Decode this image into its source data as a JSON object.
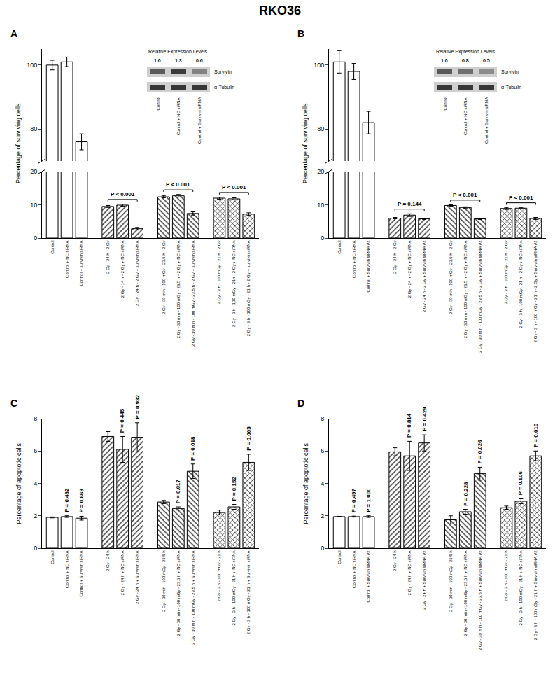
{
  "title": "RKO36",
  "chart_data": [
    {
      "type": "bar",
      "panel": "A",
      "ylabel": "Percentage of surviving cells",
      "categories": [
        "Control",
        "Control + NC siRNA",
        "Control + survivin siRNA",
        "2 Gy - 24 h - 2 Gy",
        "2 Gy - 14 h - 2 Gy + NC siRNA",
        "2 Gy - 24 h - 2 Gy + survivin siRNA",
        "2 Gy - 30 min - 100 mGy - 23.5 h - 2 Gy",
        "2 Gy - 30 min - 100 mGy - 23.5 h - 2 Gy + NC siRNA",
        "2 Gy - 30 min - 100 mGy - 23.5 h - 2 Gy + survivin siRNA",
        "2 Gy - 3 h - 100 mGy - 21 h - 2 Gy",
        "2 Gy - 3 h - 100 mGy - 21h - 2 Gy + NC siRNA",
        "2 Gy - 3 h - 100 mGy - 21 h - 2 Gy + survivin siRNA"
      ],
      "values": [
        100,
        101,
        76,
        9.5,
        9.9,
        2.8,
        12.4,
        12.7,
        7.4,
        12.0,
        11.8,
        7.2
      ],
      "errors": [
        1.5,
        1.5,
        2.5,
        0.3,
        0.3,
        0.4,
        0.3,
        0.4,
        0.5,
        0.3,
        0.3,
        0.4
      ],
      "color": "#ffffff",
      "ylim": [
        [
          0,
          20
        ],
        [
          70,
          105
        ]
      ],
      "yticks": [
        [
          0,
          10,
          20
        ],
        [
          80,
          100
        ]
      ],
      "brackets": [
        {
          "from": "2 Gy - 24 h - 2 Gy",
          "to": "2 Gy - 24 h - 2 Gy + survivin siRNA",
          "text": "P < 0.001"
        },
        {
          "from": "2 Gy - 30 min - 100 mGy - 23.5 h - 2 Gy",
          "to": "2 Gy - 30 min - 100 mGy - 23.5 h - 2 Gy + survivin siRNA",
          "text": "P < 0.001"
        },
        {
          "from": "2 Gy - 3 h - 100 mGy - 21 h - 2 Gy",
          "to": "2 Gy - 3 h - 100 mGy - 21 h - 2 Gy + survivin siRNA",
          "text": "P < 0.001"
        }
      ],
      "blot": {
        "title": "Relative Expression Levels",
        "levels": [
          "1.0",
          "1.3",
          "0.6"
        ],
        "proteins": [
          "Survivin",
          "α-Tubulin"
        ],
        "lanes": [
          "Control",
          "Control + NC siRNA",
          "Control + Survivin siRNA"
        ]
      }
    },
    {
      "type": "bar",
      "panel": "B",
      "ylabel": "Percentage of surviving cells",
      "categories": [
        "Control",
        "Control + NC siRNA",
        "Control + Survivin siRNA #2",
        "2 Gy - 24 h - 2 Gy",
        "2 Gy - 24 h - 2 Gy + NC siRNA",
        "2 Gy - 24 h - 2 Gy + Survivin siRNA #2",
        "2 Gy - 30 min - 100 mGy - 23.5 h - 2 Gy",
        "2 Gy - 30 min - 100 mGy - 23.5 h - 2 Gy + NC siRNA",
        "2 Gy - 30 min - 100 mGy - 23.5 h - 2 Gy + Survivin siRNA #2",
        "2 Gy - 3 h - 100 mGy - 21 h - 2 Gy",
        "2 Gy - 3 h - 100 mGy - 21 h - 2 Gy + NC siRNA",
        "2 Gy - 3 h - 100 mGy - 21 h - 2 Gy + Survivin siRNA #2"
      ],
      "values": [
        101,
        98,
        82,
        6.0,
        6.9,
        5.8,
        9.8,
        9.2,
        5.8,
        8.9,
        9.0,
        5.9
      ],
      "errors": [
        3.5,
        2.5,
        3.5,
        0.2,
        0.4,
        0.2,
        0.2,
        0.2,
        0.2,
        0.3,
        0.2,
        0.3
      ],
      "color": "#ffffff",
      "ylim": [
        [
          0,
          20
        ],
        [
          70,
          105
        ]
      ],
      "yticks": [
        [
          0,
          10,
          20
        ],
        [
          80,
          100
        ]
      ],
      "brackets": [
        {
          "from": "2 Gy - 24 h - 2 Gy",
          "to": "2 Gy - 24 h - 2 Gy + Survivin siRNA #2",
          "text": "P = 0.144"
        },
        {
          "from": "2 Gy - 30 min - 100 mGy - 23.5 h - 2 Gy",
          "to": "2 Gy - 30 min - 100 mGy - 23.5 h - 2 Gy + Survivin siRNA #2",
          "text": "P < 0.001"
        },
        {
          "from": "2 Gy - 3 h - 100 mGy - 21 h - 2 Gy",
          "to": "2 Gy - 3 h - 100 mGy - 21 h - 2 Gy + Survivin siRNA #2",
          "text": "P < 0.001"
        }
      ],
      "blot": {
        "title": "Relative Expression Levels",
        "levels": [
          "1.0",
          "0.8",
          "0.5"
        ],
        "proteins": [
          "Survivin",
          "α-Tubulin"
        ],
        "lanes": [
          "Control",
          "Control + NC siRNA",
          "Control + Survivin siRNA"
        ]
      }
    },
    {
      "type": "bar",
      "panel": "C",
      "ylabel": "Percentage of apoptotic cells",
      "categories": [
        "Control",
        "Control + NC siRNA",
        "Control + Survivin siRNA",
        "2 Gy - 24 h",
        "2 Gy - 24 h + NC siRNA",
        "2 Gy - 24 h + Survivin siRNA",
        "2 Gy - 30 min - 100 mGy - 23.5 h",
        "2 Gy - 30 min - 100 mGy - 23.5 h + NC siRNA",
        "2 Gy - 30 min - 100 mGy - 23.5 h + Survivin siRNA",
        "2 Gy - 3 h - 100 mGy - 21 h",
        "2 Gy - 3 h - 100 mGy - 21 h + NC siRNA",
        "2 Gy - 3 h - 100 mGy - 21 h + Survivin siRNA"
      ],
      "values": [
        1.9,
        1.95,
        1.85,
        6.9,
        6.1,
        6.85,
        2.85,
        2.45,
        4.75,
        2.2,
        2.55,
        5.3
      ],
      "errors": [
        0.03,
        0.05,
        0.12,
        0.3,
        0.8,
        0.9,
        0.1,
        0.1,
        0.45,
        0.15,
        0.15,
        0.5
      ],
      "color": "#ffffff",
      "ylim": [
        0,
        8
      ],
      "yticks": [
        0,
        2,
        4,
        6,
        8
      ],
      "annotations": [
        {
          "category": "Control + NC siRNA",
          "text": "P = 0.482"
        },
        {
          "category": "Control + Survivin siRNA",
          "text": "P = 0.663"
        },
        {
          "category": "2 Gy - 24 h + NC siRNA",
          "text": "P = 0.445"
        },
        {
          "category": "2 Gy - 24 h + Survivin siRNA",
          "text": "P = 0.932"
        },
        {
          "category": "2 Gy - 30 min - 100 mGy - 23.5 h + NC siRNA",
          "text": "P = 0.017"
        },
        {
          "category": "2 Gy - 30 min - 100 mGy - 23.5 h + Survivin siRNA",
          "text": "P = 0.018"
        },
        {
          "category": "2 Gy - 3 h - 100 mGy - 21 h + NC siRNA",
          "text": "P = 0.152"
        },
        {
          "category": "2 Gy - 3 h - 100 mGy - 21 h + Survivin siRNA",
          "text": "P = 0.005"
        }
      ]
    },
    {
      "type": "bar",
      "panel": "D",
      "ylabel": "Percentage of apoptotic cells",
      "categories": [
        "Control",
        "Control + NC siRNA",
        "Control + Survivin siRNA #2",
        "2 Gy - 24 h",
        "2 Gy - 24 h + NC siRNA",
        "2 Gy - 24 h + Survivin siRNA #2",
        "2 Gy - 30 min - 100 mGy - 23.5 h",
        "2 Gy - 30 min - 100 mGy - 23.5 h + NC siRNA",
        "2 Gy - 30 min - 100 mGy - 23.5 h + Survivin siRNA #2",
        "2 Gy - 3 h - 100 mGy - 21 h",
        "2 Gy - 3 h - 100 mGy - 21 h + NC siRNA",
        "2 Gy - 3 h - 100 mGy - 21 h + Survivin siRNA #2"
      ],
      "values": [
        1.95,
        1.95,
        1.95,
        5.95,
        5.7,
        6.5,
        1.75,
        2.25,
        4.6,
        2.5,
        2.9,
        5.7
      ],
      "errors": [
        0.02,
        0.03,
        0.05,
        0.25,
        0.9,
        0.5,
        0.25,
        0.15,
        0.4,
        0.1,
        0.15,
        0.3
      ],
      "color": "#ffffff",
      "ylim": [
        0,
        8
      ],
      "yticks": [
        0,
        2,
        4,
        6,
        8
      ],
      "annotations": [
        {
          "category": "Control + NC siRNA",
          "text": "P = 0.497"
        },
        {
          "category": "Control + Survivin siRNA #2",
          "text": "P = 1.000"
        },
        {
          "category": "2 Gy - 24 h + NC siRNA",
          "text": "P = 0.814"
        },
        {
          "category": "2 Gy - 24 h + Survivin siRNA #2",
          "text": "P = 0.429"
        },
        {
          "category": "2 Gy - 30 min - 100 mGy - 23.5 h + NC siRNA",
          "text": "P = 0.228"
        },
        {
          "category": "2 Gy - 30 min - 100 mGy - 23.5 h + Survivin siRNA #2",
          "text": "P = 0.026"
        },
        {
          "category": "2 Gy - 3 h - 100 mGy - 21 h + NC siRNA",
          "text": "P = 0.106"
        },
        {
          "category": "2 Gy - 3 h - 100 mGy - 21 h + Survivin siRNA #2",
          "text": "P = 0.010"
        }
      ]
    }
  ]
}
